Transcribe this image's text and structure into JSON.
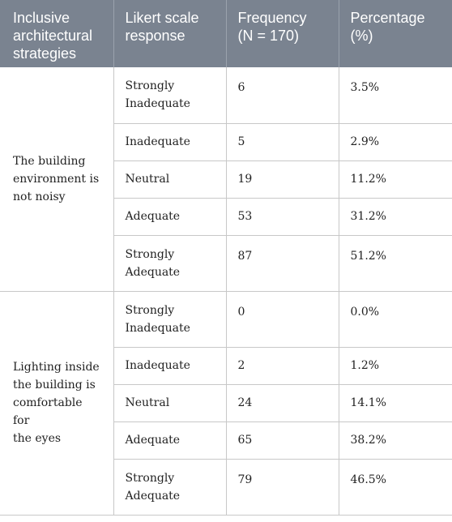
{
  "table": {
    "headers": [
      "Inclusive architectural strategies",
      "Likert scale response",
      "Frequency (N = 170)",
      "Percentage (%)"
    ],
    "header_lines": [
      [
        "Inclusive",
        "architectural",
        "strategies"
      ],
      [
        "Likert scale",
        "response"
      ],
      [
        "Frequency",
        "(N = 170)"
      ],
      [
        "Percentage",
        "(%)"
      ]
    ],
    "groups": [
      {
        "strategy": "The building environment is not noisy",
        "strategy_lines": [
          "The building",
          "environment is",
          "not noisy"
        ],
        "rows": [
          {
            "response": "Strongly Inadequate",
            "response_lines": [
              "Strongly",
              "Inadequate"
            ],
            "frequency": "6",
            "percentage": "3.5%"
          },
          {
            "response": "Inadequate",
            "frequency": "5",
            "percentage": "2.9%"
          },
          {
            "response": "Neutral",
            "frequency": "19",
            "percentage": "11.2%"
          },
          {
            "response": "Adequate",
            "frequency": "53",
            "percentage": "31.2%"
          },
          {
            "response": "Strongly Adequate",
            "response_lines": [
              "Strongly",
              "Adequate"
            ],
            "frequency": "87",
            "percentage": "51.2%"
          }
        ]
      },
      {
        "strategy": "Lighting inside the building is comfortable for the eyes",
        "strategy_lines": [
          "Lighting inside",
          "the building is",
          "comfortable for",
          "the eyes"
        ],
        "rows": [
          {
            "response": "Strongly Inadequate",
            "response_lines": [
              "Strongly",
              "Inadequate"
            ],
            "frequency": "0",
            "percentage": "0.0%"
          },
          {
            "response": "Inadequate",
            "frequency": "2",
            "percentage": "1.2%"
          },
          {
            "response": "Neutral",
            "frequency": "24",
            "percentage": "14.1%"
          },
          {
            "response": "Adequate",
            "frequency": "65",
            "percentage": "38.2%"
          },
          {
            "response": "Strongly Adequate",
            "response_lines": [
              "Strongly",
              "Adequate"
            ],
            "frequency": "79",
            "percentage": "46.5%"
          }
        ]
      }
    ]
  },
  "colors": {
    "header_bg": "#7a8390",
    "header_text": "#ffffff",
    "border": "#c8c8c8",
    "body_text": "#222222"
  }
}
